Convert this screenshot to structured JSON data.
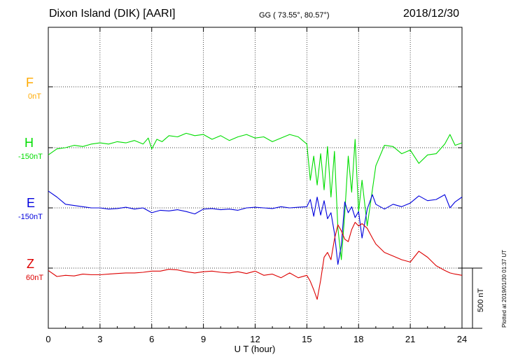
{
  "header": {
    "station": "Dixon Island (DIK)  [AARI]",
    "coords": "GG ( 73.55°,  80.57°)",
    "date": "2018/12/30"
  },
  "channels": [
    {
      "id": "F",
      "name": "F",
      "baseline": "0nT",
      "color": "#ffaa00"
    },
    {
      "id": "H",
      "name": "H",
      "baseline": "-150nT",
      "color": "#00dd00"
    },
    {
      "id": "E",
      "name": "E",
      "baseline": "-150nT",
      "color": "#0000dd"
    },
    {
      "id": "Z",
      "name": "Z",
      "baseline": "60nT",
      "color": "#dd0000"
    }
  ],
  "plot_note": "Plotted at 2019/01/30 01:37 UT",
  "scale_bar_label": "500 nT",
  "chart_data": {
    "type": "line",
    "xlabel": "U T (hour)",
    "xlim": [
      0,
      24
    ],
    "xticks": [
      0,
      3,
      6,
      9,
      12,
      15,
      18,
      21,
      24
    ],
    "y_units": "nT",
    "scale_bar_nT": 500,
    "grid": "dotted",
    "series": [
      {
        "name": "H",
        "color": "#00dd00",
        "baseline_nT": -150,
        "x": [
          0,
          0.5,
          1,
          1.5,
          2,
          2.5,
          3,
          3.5,
          4,
          4.5,
          5,
          5.5,
          5.8,
          6,
          6.3,
          6.6,
          7,
          7.5,
          8,
          8.5,
          9,
          9.5,
          10,
          10.5,
          11,
          11.5,
          12,
          12.5,
          13,
          13.5,
          14,
          14.5,
          15,
          15.2,
          15.4,
          15.6,
          15.8,
          16,
          16.2,
          16.4,
          16.6,
          16.8,
          17,
          17.2,
          17.4,
          17.6,
          17.8,
          18,
          18.2,
          18.5,
          18.8,
          19,
          19.5,
          20,
          20.5,
          21,
          21.5,
          22,
          22.5,
          23,
          23.3,
          23.6,
          24
        ],
        "y": [
          -210,
          -160,
          -150,
          -130,
          -140,
          -120,
          -110,
          -120,
          -100,
          -110,
          -90,
          -120,
          -70,
          -160,
          -80,
          -100,
          -50,
          -60,
          -30,
          -50,
          -40,
          -80,
          -50,
          -90,
          -60,
          -40,
          -70,
          -60,
          -100,
          -70,
          -40,
          -60,
          -120,
          -420,
          -220,
          -460,
          -200,
          -500,
          -140,
          -560,
          -180,
          -820,
          -1080,
          -700,
          -220,
          -520,
          -80,
          -680,
          -420,
          -800,
          -500,
          -300,
          -130,
          -140,
          -200,
          -170,
          -280,
          -210,
          -200,
          -120,
          -40,
          -130,
          -110
        ]
      },
      {
        "name": "E",
        "color": "#0000dd",
        "baseline_nT": -150,
        "x": [
          0,
          0.5,
          1,
          1.5,
          2,
          2.5,
          3,
          3.5,
          4,
          4.5,
          5,
          5.5,
          6,
          6.5,
          7,
          7.5,
          8,
          8.5,
          9,
          9.5,
          10,
          10.5,
          11,
          11.5,
          12,
          12.5,
          13,
          13.5,
          14,
          14.5,
          15,
          15.2,
          15.4,
          15.6,
          15.8,
          16,
          16.2,
          16.4,
          16.6,
          16.8,
          17,
          17.2,
          17.4,
          17.6,
          17.8,
          18,
          18.2,
          18.5,
          18.8,
          19,
          19.5,
          20,
          20.5,
          21,
          21.5,
          22,
          22.5,
          23,
          23.3,
          23.6,
          24
        ],
        "y": [
          -10,
          -60,
          -120,
          -130,
          -140,
          -150,
          -150,
          -160,
          -155,
          -145,
          -160,
          -150,
          -190,
          -170,
          -175,
          -165,
          -180,
          -200,
          -160,
          -155,
          -165,
          -160,
          -170,
          -150,
          -145,
          -150,
          -155,
          -140,
          -150,
          -145,
          -140,
          -80,
          -220,
          -60,
          -210,
          -90,
          -240,
          -190,
          -360,
          -620,
          -460,
          -100,
          -190,
          -140,
          -230,
          -180,
          -400,
          -160,
          -40,
          -120,
          -160,
          -120,
          -140,
          -110,
          -50,
          -90,
          -80,
          -40,
          -150,
          -100,
          -60
        ]
      },
      {
        "name": "Z",
        "color": "#dd0000",
        "baseline_nT": 60,
        "x": [
          0,
          0.5,
          1,
          1.5,
          2,
          2.5,
          3,
          3.5,
          4,
          4.5,
          5,
          5.5,
          6,
          6.5,
          7,
          7.5,
          8,
          8.5,
          9,
          9.5,
          10,
          10.5,
          11,
          11.5,
          12,
          12.5,
          13,
          13.5,
          14,
          14.5,
          15,
          15.2,
          15.4,
          15.6,
          15.8,
          16,
          16.2,
          16.4,
          16.6,
          16.8,
          17,
          17.2,
          17.4,
          17.6,
          17.8,
          18,
          18.2,
          18.5,
          18.8,
          19,
          19.5,
          20,
          20.5,
          21,
          21.5,
          22,
          22.5,
          23,
          23.3,
          23.6,
          24
        ],
        "y": [
          40,
          -10,
          0,
          -5,
          10,
          5,
          5,
          10,
          15,
          20,
          20,
          25,
          35,
          35,
          50,
          45,
          30,
          20,
          30,
          35,
          25,
          20,
          30,
          15,
          35,
          0,
          10,
          -20,
          20,
          -20,
          0,
          -50,
          -120,
          -200,
          -40,
          150,
          190,
          130,
          300,
          420,
          370,
          300,
          280,
          380,
          440,
          410,
          430,
          390,
          310,
          260,
          190,
          160,
          130,
          110,
          200,
          150,
          80,
          40,
          20,
          10,
          0
        ]
      }
    ]
  }
}
